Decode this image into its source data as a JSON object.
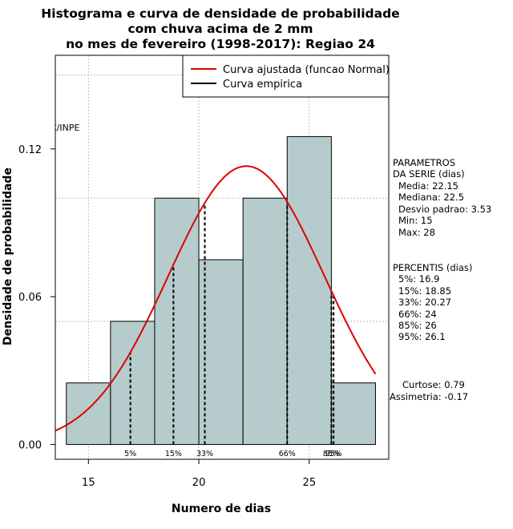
{
  "chart_data": {
    "type": "bar",
    "title_lines": [
      "Histograma e curva de densidade de probabilidade",
      "com chuva acima de 2 mm",
      "no mes de fevereiro (1998-2017): Regiao 24"
    ],
    "xlabel": "Numero de dias",
    "ylabel": "Densidade de probabilidade",
    "xlim": [
      13.5,
      28.6
    ],
    "ylim": [
      -0.006,
      0.158
    ],
    "x_ticks": [
      15,
      20,
      25
    ],
    "x_tick_labels": [
      "15",
      "20",
      "25"
    ],
    "y_ticks": [
      0.0,
      0.06,
      0.12
    ],
    "y_tick_labels": [
      "0.00",
      "0.06",
      "0.12"
    ],
    "grid_x": [
      15,
      20,
      25
    ],
    "grid_y": [
      0.05,
      0.1,
      0.15
    ],
    "bins": [
      {
        "from": 14,
        "to": 16,
        "density": 0.025
      },
      {
        "from": 16,
        "to": 18,
        "density": 0.05
      },
      {
        "from": 18,
        "to": 20,
        "density": 0.1
      },
      {
        "from": 20,
        "to": 22,
        "density": 0.075
      },
      {
        "from": 22,
        "to": 24,
        "density": 0.1
      },
      {
        "from": 24,
        "to": 26,
        "density": 0.125
      },
      {
        "from": 26,
        "to": 28,
        "density": 0.025
      }
    ],
    "bar_color": "#b6cccc",
    "normal_curve": {
      "mean": 22.15,
      "sd": 3.53,
      "color": "#dd0000"
    },
    "percentile_lines": [
      {
        "label": "5%",
        "value": 16.9
      },
      {
        "label": "15%",
        "value": 18.85
      },
      {
        "label": "33%",
        "value": 20.27
      },
      {
        "label": "66%",
        "value": 24
      },
      {
        "label": "85%",
        "value": 26
      },
      {
        "label": "95%",
        "value": 26.1
      }
    ],
    "watermark": "CPTEC/INPE",
    "legend": {
      "position": "top-right",
      "entries": [
        {
          "label": "Curva ajustada (funcao Normal)",
          "color": "#dd0000"
        },
        {
          "label": "Curva empirica",
          "color": "#000000"
        }
      ]
    }
  },
  "side_panel": {
    "params_title_1": "PARAMETROS",
    "params_title_2": "DA SERIE (dias)",
    "media": "Media: 22.15",
    "mediana": "Mediana: 22.5",
    "desvio": "Desvio padrao: 3.53",
    "min": "Min: 15",
    "max": "Max: 28",
    "percentis_title": "PERCENTIS (dias)",
    "p5": "5%: 16.9",
    "p15": "15%: 18.85",
    "p33": "33%: 20.27",
    "p66": "66%: 24",
    "p85": "85%: 26",
    "p95": "95%: 26.1",
    "curtose": "Curtose: 0.79",
    "assimetria": "Assimetria: -0.17"
  }
}
